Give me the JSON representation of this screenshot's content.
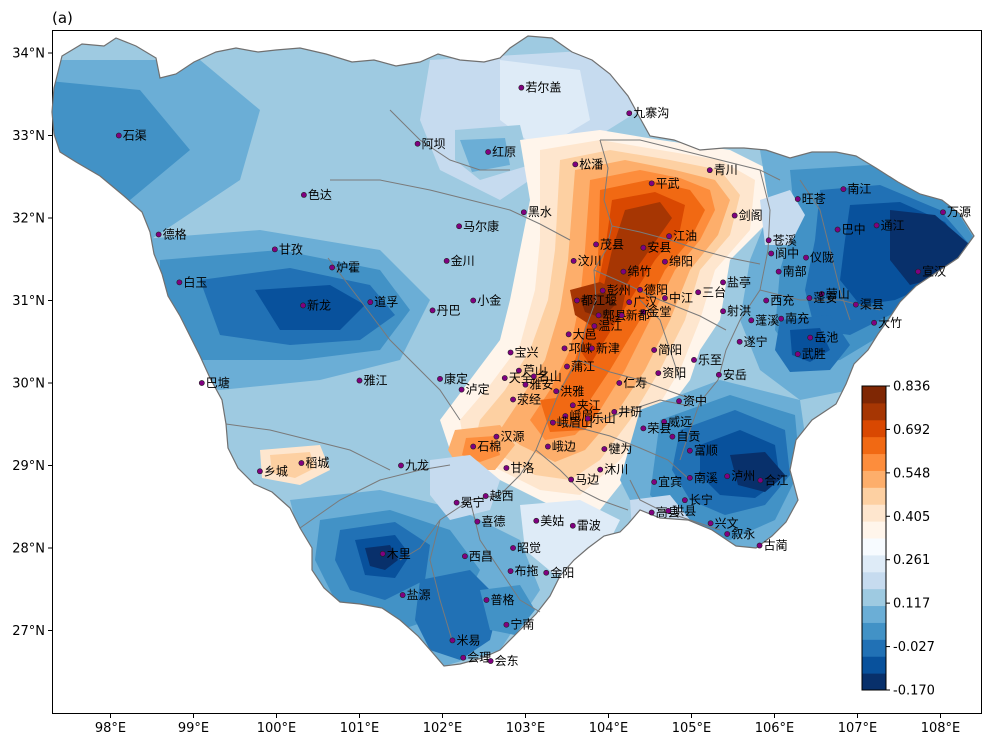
{
  "panel_label": "(a)",
  "colorbar": {
    "colors": [
      "#08306b",
      "#08519c",
      "#2171b5",
      "#4292c6",
      "#6baed6",
      "#9ecae1",
      "#c6dbef",
      "#deebf7",
      "#f7fbff",
      "#fff5eb",
      "#fee6ce",
      "#fdd0a2",
      "#fdae6b",
      "#fd8d3c",
      "#f16913",
      "#d94801",
      "#a63603",
      "#7f2704"
    ],
    "tick_labels": [
      "0.836",
      "0.692",
      "0.548",
      "0.405",
      "0.261",
      "0.117",
      "-0.027",
      "-0.170"
    ]
  },
  "axes": {
    "x_ticks": [
      "98°E",
      "99°E",
      "100°E",
      "101°E",
      "102°E",
      "103°E",
      "104°E",
      "105°E",
      "106°E",
      "107°E",
      "108°E"
    ],
    "y_ticks": [
      "34°N",
      "33°N",
      "32°N",
      "31°N",
      "30°N",
      "29°N",
      "28°N",
      "27°N"
    ],
    "lon_range": [
      97.3,
      108.55
    ],
    "lat_range": [
      26.0,
      34.45
    ]
  },
  "stations": [
    {
      "name": "石渠",
      "lon": 98.1,
      "lat": 33.0
    },
    {
      "name": "若尔盖",
      "lon": 102.95,
      "lat": 33.58
    },
    {
      "name": "九寨沟",
      "lon": 104.25,
      "lat": 33.27
    },
    {
      "name": "阿坝",
      "lon": 101.7,
      "lat": 32.9
    },
    {
      "name": "红原",
      "lon": 102.55,
      "lat": 32.8
    },
    {
      "name": "松潘",
      "lon": 103.6,
      "lat": 32.65
    },
    {
      "name": "青川",
      "lon": 105.22,
      "lat": 32.58
    },
    {
      "name": "平武",
      "lon": 104.52,
      "lat": 32.42
    },
    {
      "name": "色达",
      "lon": 100.33,
      "lat": 32.28
    },
    {
      "name": "旺苍",
      "lon": 106.28,
      "lat": 32.23
    },
    {
      "name": "南江",
      "lon": 106.83,
      "lat": 32.35
    },
    {
      "name": "德格",
      "lon": 98.58,
      "lat": 31.8
    },
    {
      "name": "马尔康",
      "lon": 102.2,
      "lat": 31.9
    },
    {
      "name": "黑水",
      "lon": 102.98,
      "lat": 32.07
    },
    {
      "name": "剑阁",
      "lon": 105.52,
      "lat": 32.03
    },
    {
      "name": "万源",
      "lon": 108.03,
      "lat": 32.07
    },
    {
      "name": "江油",
      "lon": 104.73,
      "lat": 31.78
    },
    {
      "name": "苍溪",
      "lon": 105.93,
      "lat": 31.73
    },
    {
      "name": "巴中",
      "lon": 106.76,
      "lat": 31.86
    },
    {
      "name": "通江",
      "lon": 107.23,
      "lat": 31.91
    },
    {
      "name": "甘孜",
      "lon": 99.98,
      "lat": 31.62
    },
    {
      "name": "茂县",
      "lon": 103.85,
      "lat": 31.68
    },
    {
      "name": "安县",
      "lon": 104.42,
      "lat": 31.64
    },
    {
      "name": "阆中",
      "lon": 105.96,
      "lat": 31.57
    },
    {
      "name": "仪陇",
      "lon": 106.38,
      "lat": 31.52
    },
    {
      "name": "炉霍",
      "lon": 100.67,
      "lat": 31.4
    },
    {
      "name": "金川",
      "lon": 102.05,
      "lat": 31.48
    },
    {
      "name": "汶川",
      "lon": 103.58,
      "lat": 31.48
    },
    {
      "name": "绵竹",
      "lon": 104.18,
      "lat": 31.35
    },
    {
      "name": "绵阳",
      "lon": 104.68,
      "lat": 31.47
    },
    {
      "name": "南部",
      "lon": 106.05,
      "lat": 31.35
    },
    {
      "name": "宣汉",
      "lon": 107.73,
      "lat": 31.35
    },
    {
      "name": "白玉",
      "lon": 98.83,
      "lat": 31.22
    },
    {
      "name": "彭州",
      "lon": 103.93,
      "lat": 31.12
    },
    {
      "name": "德阳",
      "lon": 104.38,
      "lat": 31.13
    },
    {
      "name": "三台",
      "lon": 105.08,
      "lat": 31.1
    },
    {
      "name": "盐亭",
      "lon": 105.38,
      "lat": 31.22
    },
    {
      "name": "营山",
      "lon": 106.57,
      "lat": 31.08
    },
    {
      "name": "新龙",
      "lon": 100.32,
      "lat": 30.94
    },
    {
      "name": "道孚",
      "lon": 101.13,
      "lat": 30.98
    },
    {
      "name": "小金",
      "lon": 102.37,
      "lat": 31.0
    },
    {
      "name": "都江堰",
      "lon": 103.62,
      "lat": 31.0
    },
    {
      "name": "广汉",
      "lon": 104.25,
      "lat": 30.98
    },
    {
      "name": "中江",
      "lon": 104.68,
      "lat": 31.03
    },
    {
      "name": "西充",
      "lon": 105.9,
      "lat": 31.0
    },
    {
      "name": "蓬安",
      "lon": 106.42,
      "lat": 31.03
    },
    {
      "name": "渠县",
      "lon": 106.98,
      "lat": 30.95
    },
    {
      "name": "丹巴",
      "lon": 101.88,
      "lat": 30.88
    },
    {
      "name": "郫县",
      "lon": 103.88,
      "lat": 30.82
    },
    {
      "name": "射洪",
      "lon": 105.38,
      "lat": 30.87
    },
    {
      "name": "金堂",
      "lon": 104.42,
      "lat": 30.86
    },
    {
      "name": "蓬溪",
      "lon": 105.72,
      "lat": 30.76
    },
    {
      "name": "南充",
      "lon": 106.08,
      "lat": 30.78
    },
    {
      "name": "大竹",
      "lon": 107.2,
      "lat": 30.73
    },
    {
      "name": "岳池",
      "lon": 106.43,
      "lat": 30.55
    },
    {
      "name": "大邑",
      "lon": 103.52,
      "lat": 30.59
    },
    {
      "name": "温江",
      "lon": 103.83,
      "lat": 30.69
    },
    {
      "name": "新都",
      "lon": 104.16,
      "lat": 30.82
    },
    {
      "name": "宝兴",
      "lon": 102.82,
      "lat": 30.37
    },
    {
      "name": "邛崃",
      "lon": 103.47,
      "lat": 30.42
    },
    {
      "name": "简阳",
      "lon": 104.55,
      "lat": 30.4
    },
    {
      "name": "遂宁",
      "lon": 105.58,
      "lat": 30.5
    },
    {
      "name": "武胜",
      "lon": 106.28,
      "lat": 30.35
    },
    {
      "name": "芦山",
      "lon": 102.92,
      "lat": 30.15
    },
    {
      "name": "新津",
      "lon": 103.8,
      "lat": 30.42
    },
    {
      "name": "乐至",
      "lon": 105.03,
      "lat": 30.28
    },
    {
      "name": "巴塘",
      "lon": 99.1,
      "lat": 30.0
    },
    {
      "name": "雅江",
      "lon": 101.0,
      "lat": 30.03
    },
    {
      "name": "康定",
      "lon": 101.97,
      "lat": 30.05
    },
    {
      "name": "天全",
      "lon": 102.75,
      "lat": 30.06
    },
    {
      "name": "名山",
      "lon": 103.1,
      "lat": 30.08
    },
    {
      "name": "蒲江",
      "lon": 103.5,
      "lat": 30.2
    },
    {
      "name": "仁寿",
      "lon": 104.13,
      "lat": 30.0
    },
    {
      "name": "资阳",
      "lon": 104.6,
      "lat": 30.12
    },
    {
      "name": "安岳",
      "lon": 105.33,
      "lat": 30.1
    },
    {
      "name": "泸定",
      "lon": 102.23,
      "lat": 29.92
    },
    {
      "name": "雅安",
      "lon": 103.0,
      "lat": 29.98
    },
    {
      "name": "洪雅",
      "lon": 103.37,
      "lat": 29.9
    },
    {
      "name": "夹江",
      "lon": 103.57,
      "lat": 29.73
    },
    {
      "name": "荥经",
      "lon": 102.85,
      "lat": 29.8
    },
    {
      "name": "资中",
      "lon": 104.85,
      "lat": 29.78
    },
    {
      "name": "峨眉",
      "lon": 103.48,
      "lat": 29.6
    },
    {
      "name": "峨眉山",
      "lon": 103.33,
      "lat": 29.52
    },
    {
      "name": "井研",
      "lon": 104.07,
      "lat": 29.65
    },
    {
      "name": "威远",
      "lon": 104.67,
      "lat": 29.53
    },
    {
      "name": "汉源",
      "lon": 102.65,
      "lat": 29.35
    },
    {
      "name": "乐山",
      "lon": 103.75,
      "lat": 29.57
    },
    {
      "name": "荣县",
      "lon": 104.42,
      "lat": 29.45
    },
    {
      "name": "自贡",
      "lon": 104.77,
      "lat": 29.35
    },
    {
      "name": "石棉",
      "lon": 102.37,
      "lat": 29.23
    },
    {
      "name": "峨边",
      "lon": 103.27,
      "lat": 29.23
    },
    {
      "name": "犍为",
      "lon": 103.95,
      "lat": 29.2
    },
    {
      "name": "富顺",
      "lon": 104.98,
      "lat": 29.18
    },
    {
      "name": "乡城",
      "lon": 99.8,
      "lat": 28.93
    },
    {
      "name": "稻城",
      "lon": 100.3,
      "lat": 29.03
    },
    {
      "name": "九龙",
      "lon": 101.5,
      "lat": 29.0
    },
    {
      "name": "甘洛",
      "lon": 102.77,
      "lat": 28.97
    },
    {
      "name": "马边",
      "lon": 103.55,
      "lat": 28.83
    },
    {
      "name": "沐川",
      "lon": 103.9,
      "lat": 28.95
    },
    {
      "name": "宜宾",
      "lon": 104.55,
      "lat": 28.8
    },
    {
      "name": "南溪",
      "lon": 104.98,
      "lat": 28.85
    },
    {
      "name": "泸州",
      "lon": 105.43,
      "lat": 28.87
    },
    {
      "name": "合江",
      "lon": 105.83,
      "lat": 28.82
    },
    {
      "name": "冕宁",
      "lon": 102.17,
      "lat": 28.55
    },
    {
      "name": "越西",
      "lon": 102.52,
      "lat": 28.63
    },
    {
      "name": "高县",
      "lon": 104.52,
      "lat": 28.43
    },
    {
      "name": "长宁",
      "lon": 104.92,
      "lat": 28.58
    },
    {
      "name": "美姑",
      "lon": 103.13,
      "lat": 28.33
    },
    {
      "name": "雷波",
      "lon": 103.57,
      "lat": 28.27
    },
    {
      "name": "珙县",
      "lon": 104.72,
      "lat": 28.45
    },
    {
      "name": "兴文",
      "lon": 105.23,
      "lat": 28.3
    },
    {
      "name": "叙永",
      "lon": 105.43,
      "lat": 28.17
    },
    {
      "name": "喜德",
      "lon": 102.42,
      "lat": 28.32
    },
    {
      "name": "古蔺",
      "lon": 105.82,
      "lat": 28.03
    },
    {
      "name": "木里",
      "lon": 101.28,
      "lat": 27.93
    },
    {
      "name": "西昌",
      "lon": 102.27,
      "lat": 27.9
    },
    {
      "name": "昭觉",
      "lon": 102.85,
      "lat": 28.0
    },
    {
      "name": "布拖",
      "lon": 102.82,
      "lat": 27.72
    },
    {
      "name": "金阳",
      "lon": 103.25,
      "lat": 27.7
    },
    {
      "name": "盐源",
      "lon": 101.52,
      "lat": 27.43
    },
    {
      "name": "普格",
      "lon": 102.53,
      "lat": 27.37
    },
    {
      "name": "宁南",
      "lon": 102.77,
      "lat": 27.07
    },
    {
      "name": "米易",
      "lon": 102.12,
      "lat": 26.88
    },
    {
      "name": "会理",
      "lon": 102.25,
      "lat": 26.67
    },
    {
      "name": "会东",
      "lon": 102.58,
      "lat": 26.63
    }
  ]
}
